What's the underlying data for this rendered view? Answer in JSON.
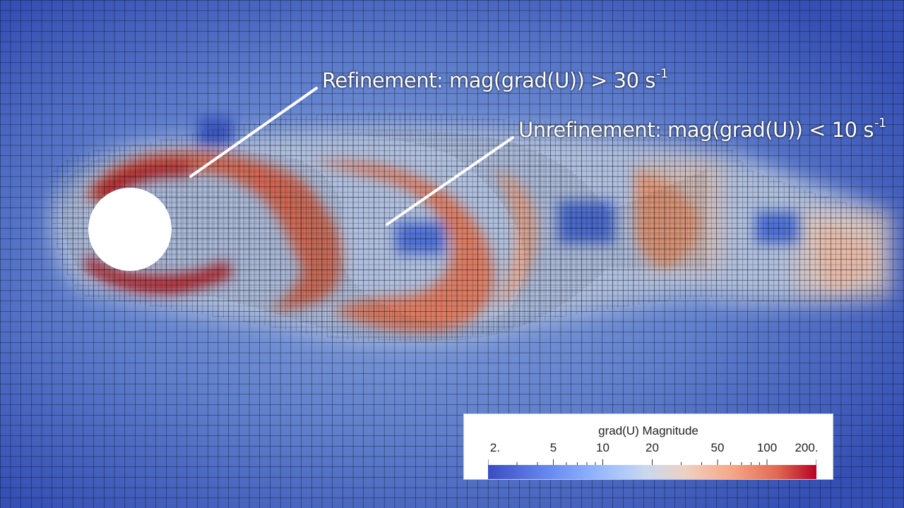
{
  "annotations": {
    "refinement": {
      "text": "Refinement: mag(grad(U)) > 30 s",
      "sup": "-1"
    },
    "unrefinement": {
      "text": "Unrefinement: mag(grad(U)) < 10 s",
      "sup": "-1"
    }
  },
  "legend": {
    "title": "grad(U) Magnitude",
    "scale": "log",
    "range": [
      2,
      200
    ],
    "tick_labels": [
      "2.",
      "5",
      "10",
      "20",
      "50",
      "100",
      "200."
    ],
    "tick_values": [
      2,
      5,
      10,
      20,
      50,
      100,
      200
    ],
    "colormap": "Cool to Warm"
  },
  "colors": {
    "low": "#3b4cc0",
    "mid": "#dddddd",
    "high": "#b40426",
    "mesh_lines": "#0a0a14",
    "cylinder": "#ffffff",
    "leader_lines": "#ffffff"
  }
}
